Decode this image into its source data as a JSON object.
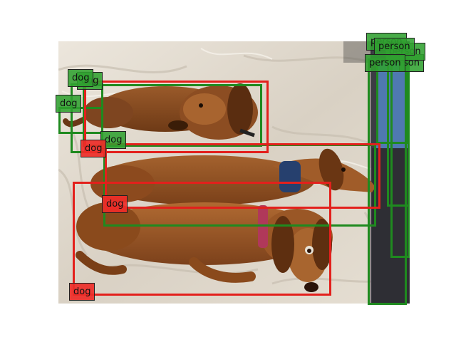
{
  "scene": {
    "labels": {
      "dog": "dog",
      "person": "person",
      "person_clipped": "son"
    },
    "colors": {
      "ground_truth_box": "#1f8a1f",
      "prediction_box": "#e3201c",
      "ground_truth_tag": "#30a030",
      "prediction_tag": "#ee2c28"
    }
  }
}
